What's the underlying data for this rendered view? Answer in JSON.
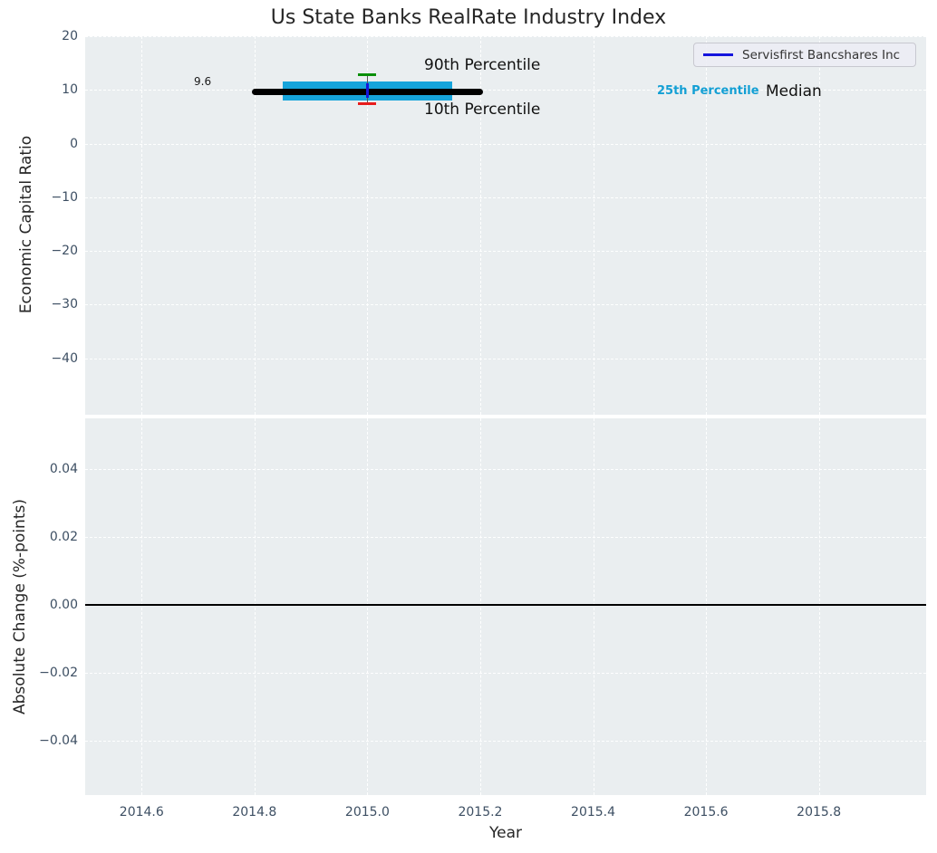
{
  "chart_data": {
    "type": "line",
    "title": "Us State Banks RealRate Industry Index",
    "xlabel": "Year",
    "xlim": [
      2014.5,
      2015.99
    ],
    "xticks": [
      {
        "v": 2014.6,
        "label": "2014.6"
      },
      {
        "v": 2014.8,
        "label": "2014.8"
      },
      {
        "v": 2015.0,
        "label": "2015.0"
      },
      {
        "v": 2015.2,
        "label": "2015.2"
      },
      {
        "v": 2015.4,
        "label": "2015.4"
      },
      {
        "v": 2015.6,
        "label": "2015.6"
      },
      {
        "v": 2015.8,
        "label": "2015.8"
      }
    ],
    "grid": {
      "visible": true,
      "style": "dashed",
      "color": "#ffffff"
    },
    "plot_background": "#eaeef0",
    "legend": {
      "position": "upper right",
      "entries": [
        {
          "label": "Servisfirst Bancshares Inc",
          "color": "#1515dd"
        }
      ]
    },
    "subplots": [
      {
        "ylabel": "Economic Capital Ratio",
        "ylim": [
          -50.5,
          20
        ],
        "yticks": [
          {
            "v": 20,
            "label": "20"
          },
          {
            "v": 10,
            "label": "10"
          },
          {
            "v": 0,
            "label": "0"
          },
          {
            "v": -10,
            "label": "−10"
          },
          {
            "v": -20,
            "label": "−20"
          },
          {
            "v": -30,
            "label": "−30"
          },
          {
            "v": -40,
            "label": "−40"
          }
        ],
        "series": [
          {
            "type": "band",
            "name": "25th-75th percentile band",
            "color": "#16a4db",
            "x_start": 2014.85,
            "x_end": 2015.15,
            "y_low": 8.0,
            "y_high": 11.5
          },
          {
            "type": "median_line",
            "name": "Median",
            "color": "#000000",
            "x_start": 2014.8,
            "x_end": 2015.2,
            "y": 9.6
          },
          {
            "type": "errorbar",
            "name": "10th-90th percentile range",
            "x": 2015.0,
            "y_low": 7.5,
            "y_high": 12.9,
            "cap_low_color": "#e81c1c",
            "cap_high_color": "#0a8f0a",
            "line_color": "#555555"
          },
          {
            "type": "company_point",
            "name": "Servisfirst Bancshares Inc",
            "color": "#1515dd",
            "x": 2015.0,
            "y": 9.9,
            "y_low": 8.5,
            "y_high": 11.2
          }
        ],
        "annotations": {
          "p90": "90th Percentile",
          "p10": "10th Percentile",
          "p25": "25th Percentile",
          "median": "Median",
          "median_value": "9.6"
        }
      },
      {
        "ylabel": "Absolute Change (%-points)",
        "ylim": [
          -0.056,
          0.055
        ],
        "yticks": [
          {
            "v": 0.04,
            "label": "0.04"
          },
          {
            "v": 0.02,
            "label": "0.02"
          },
          {
            "v": 0.0,
            "label": "0.00"
          },
          {
            "v": -0.02,
            "label": "−0.02"
          },
          {
            "v": -0.04,
            "label": "−0.04"
          }
        ],
        "zero_line": {
          "y": 0.0,
          "color": "#000000"
        },
        "series": []
      }
    ]
  }
}
